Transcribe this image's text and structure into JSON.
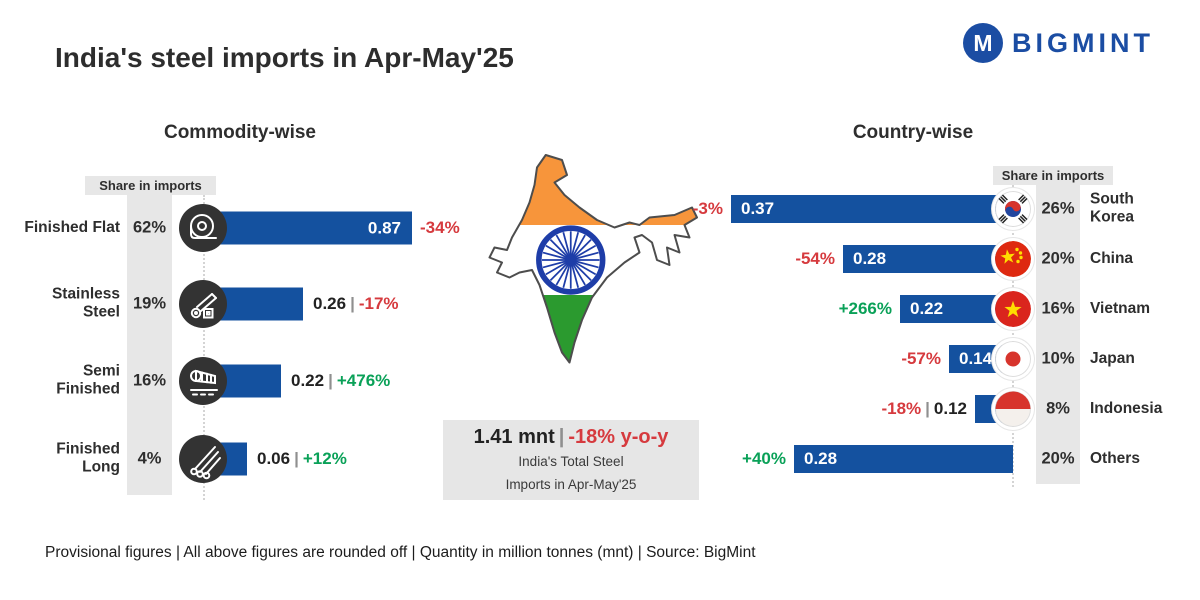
{
  "sep": "|",
  "header": {
    "title": "India's steel imports in Apr-May'25",
    "brand": "BIGMINT",
    "brand_monogram": "M"
  },
  "commodity": {
    "title": "Commodity-wise",
    "share_label": "Share in imports",
    "rows": [
      {
        "label": "Finished Flat",
        "share": "62%",
        "value": "0.87",
        "change": "-34%",
        "icon": "coil-icon"
      },
      {
        "label": "Stainless Steel",
        "share": "19%",
        "value": "0.26",
        "change": "-17%",
        "icon": "pipes-icon"
      },
      {
        "label": "Semi Finished",
        "share": "16%",
        "value": "0.22",
        "change": "+476%",
        "icon": "slab-icon"
      },
      {
        "label": "Finished Long",
        "share": "4%",
        "value": "0.06",
        "change": "+12%",
        "icon": "rods-icon"
      }
    ]
  },
  "country": {
    "title": "Country-wise",
    "share_label": "Share in imports",
    "rows": [
      {
        "label": "South Korea",
        "share": "26%",
        "value": "0.37",
        "change": "-3%",
        "flag": "south-korea-flag-icon"
      },
      {
        "label": "China",
        "share": "20%",
        "value": "0.28",
        "change": "-54%",
        "flag": "china-flag-icon"
      },
      {
        "label": "Vietnam",
        "share": "16%",
        "value": "0.22",
        "change": "+266%",
        "flag": "vietnam-flag-icon"
      },
      {
        "label": "Japan",
        "share": "10%",
        "value": "0.14",
        "change": "-57%",
        "flag": "japan-flag-icon"
      },
      {
        "label": "Indonesia",
        "share": "8%",
        "value": "0.12",
        "change": "-18%",
        "flag": "indonesia-flag-icon"
      },
      {
        "label": "Others",
        "share": "20%",
        "value": "0.28",
        "change": "+40%",
        "flag": null
      }
    ]
  },
  "center": {
    "total_value": "1.41 mnt",
    "total_change": "-18% y-o-y",
    "caption_line1": "India's Total Steel",
    "caption_line2": "Imports in Apr-May'25"
  },
  "footer": "Provisional figures | All above figures are rounded off | Quantity in million tonnes (mnt) | Source: BigMint",
  "colors": {
    "bar_blue": "#14519f",
    "negative_red": "#d63a3e",
    "positive_green": "#0aa158",
    "brand_blue": "#1b4da3",
    "panel_gray": "#e7e7e7",
    "icon_circle": "#333333",
    "flag_saffron": "#f7953b",
    "flag_green": "#2b9a2f",
    "chakra_navy": "#1e3da8"
  },
  "chart_data": [
    {
      "type": "bar",
      "orientation": "horizontal",
      "title": "Commodity-wise",
      "categories": [
        "Finished Flat",
        "Stainless Steel",
        "Semi Finished",
        "Finished Long"
      ],
      "values": [
        0.87,
        0.26,
        0.22,
        0.06
      ],
      "share_in_imports_pct": [
        62,
        19,
        16,
        4
      ],
      "yoy_change_pct": [
        -34,
        -17,
        476,
        12
      ],
      "unit": "mnt",
      "legend_position": "none",
      "grid": false
    },
    {
      "type": "bar",
      "orientation": "horizontal",
      "title": "Country-wise",
      "categories": [
        "South Korea",
        "China",
        "Vietnam",
        "Japan",
        "Indonesia",
        "Others"
      ],
      "values": [
        0.37,
        0.28,
        0.22,
        0.14,
        0.12,
        0.28
      ],
      "share_in_imports_pct": [
        26,
        20,
        16,
        10,
        8,
        20
      ],
      "yoy_change_pct": [
        -3,
        -54,
        266,
        -57,
        -18,
        40
      ],
      "unit": "mnt",
      "legend_position": "none",
      "grid": false
    },
    {
      "type": "annotation",
      "title": "India's Total Steel Imports in Apr-May'25",
      "total_mnt": 1.41,
      "yoy_change_pct": -18
    }
  ]
}
